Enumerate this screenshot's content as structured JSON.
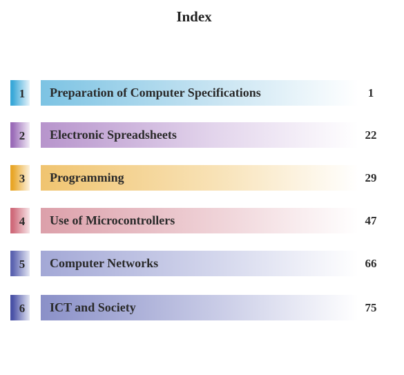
{
  "title": "Index",
  "chapters": [
    {
      "number": "1",
      "title": "Preparation of Computer Specifications",
      "page": "1",
      "accent": "#3aa8d8",
      "accent_light": "#e6f3fa",
      "bar_start": "#7cc3e3",
      "bar_mid": "#c8e4f2"
    },
    {
      "number": "2",
      "title": "Electronic Spreadsheets",
      "page": "22",
      "accent": "#9a6bb8",
      "accent_light": "#f1eaf5",
      "bar_start": "#b794cc",
      "bar_mid": "#e3d5ec"
    },
    {
      "number": "3",
      "title": "Programming",
      "page": "29",
      "accent": "#e8a628",
      "accent_light": "#fcf1dc",
      "bar_start": "#f0c470",
      "bar_mid": "#f8e2b6"
    },
    {
      "number": "4",
      "title": "Use of Microcontrollers",
      "page": "47",
      "accent": "#cf6a7a",
      "accent_light": "#f6e3e6",
      "bar_start": "#dca0aa",
      "bar_mid": "#efd2d7"
    },
    {
      "number": "5",
      "title": "Computer Networks",
      "page": "66",
      "accent": "#5b63b0",
      "accent_light": "#e4e6f3",
      "bar_start": "#a3a8d6",
      "bar_mid": "#d3d6ec"
    },
    {
      "number": "6",
      "title": "ICT and Society",
      "page": "75",
      "accent": "#4a52a6",
      "accent_light": "#e2e4f2",
      "bar_start": "#8a90c8",
      "bar_mid": "#c8cbe6"
    }
  ]
}
